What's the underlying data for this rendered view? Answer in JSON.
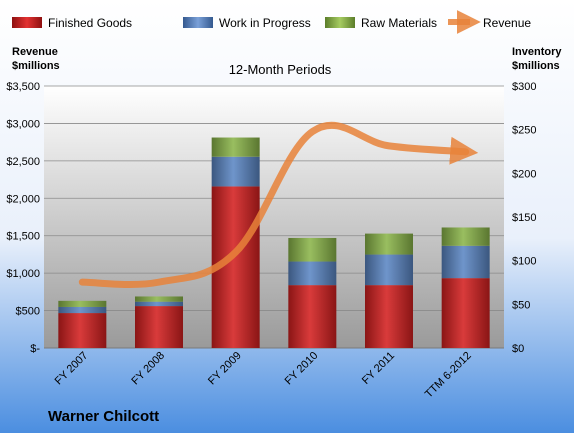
{
  "chart_data": {
    "type": "bar",
    "subtitle": "12-Month Periods",
    "company": "Warner Chilcott",
    "categories": [
      "FY 2007",
      "FY 2008",
      "FY 2009",
      "FY 2010",
      "FY 2011",
      "TTM 6-2012"
    ],
    "left_axis": {
      "title_line1": "Revenue",
      "title_line2": "$millions",
      "ylim": [
        0,
        3500
      ],
      "ticks": [
        {
          "value": 0,
          "label": "$-"
        },
        {
          "value": 500,
          "label": "$500"
        },
        {
          "value": 1000,
          "label": "$1,000"
        },
        {
          "value": 1500,
          "label": "$1,500"
        },
        {
          "value": 2000,
          "label": "$2,000"
        },
        {
          "value": 2500,
          "label": "$2,500"
        },
        {
          "value": 3000,
          "label": "$3,000"
        },
        {
          "value": 3500,
          "label": "$3,500"
        }
      ]
    },
    "right_axis": {
      "title_line1": "Inventory",
      "title_line2": "$millions",
      "ylim": [
        0,
        300
      ],
      "ticks": [
        {
          "value": 0,
          "label": "$0"
        },
        {
          "value": 50,
          "label": "$50"
        },
        {
          "value": 100,
          "label": "$100"
        },
        {
          "value": 150,
          "label": "$150"
        },
        {
          "value": 200,
          "label": "$200"
        },
        {
          "value": 250,
          "label": "$250"
        },
        {
          "value": 300,
          "label": "$300"
        }
      ]
    },
    "stacked_series": [
      {
        "name": "Finished Goods",
        "axis": "right",
        "color": "#d42020",
        "values": [
          40,
          48,
          185,
          72,
          72,
          80
        ]
      },
      {
        "name": "Work in Progress",
        "axis": "right",
        "color": "#5b86c4",
        "values": [
          7,
          5,
          34,
          27,
          35,
          37
        ]
      },
      {
        "name": "Raw Materials",
        "axis": "right",
        "color": "#8bb54a",
        "values": [
          7,
          6,
          22,
          27,
          24,
          21
        ]
      }
    ],
    "line_series": {
      "name": "Revenue",
      "axis": "left",
      "color": "#e8823a",
      "values": [
        880,
        880,
        1280,
        2890,
        2700,
        2620
      ]
    },
    "legend_position": "top",
    "grid": true
  }
}
